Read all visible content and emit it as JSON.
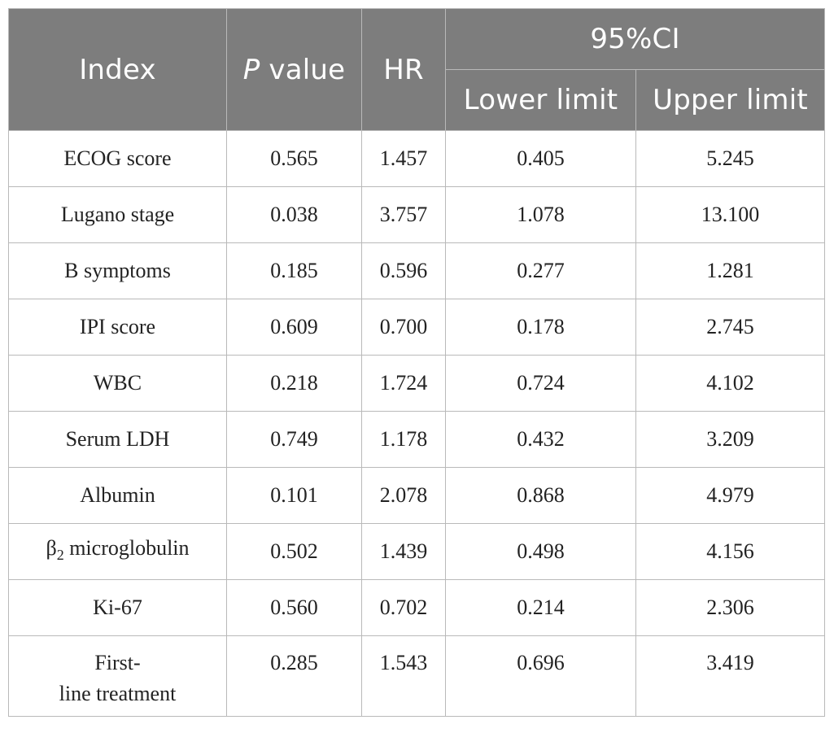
{
  "table": {
    "header": {
      "index": "Index",
      "p_value_italic": "P",
      "p_value_rest": " value",
      "hr": "HR",
      "ci": "95%CI",
      "lower": "Lower limit",
      "upper": "Upper limit"
    },
    "rows": [
      {
        "index": "ECOG score",
        "p": "0.565",
        "hr": "1.457",
        "lower": "0.405",
        "upper": "5.245"
      },
      {
        "index": "Lugano stage",
        "p": "0.038",
        "hr": "3.757",
        "lower": "1.078",
        "upper": "13.100"
      },
      {
        "index": "B symptoms",
        "p": "0.185",
        "hr": "0.596",
        "lower": "0.277",
        "upper": "1.281"
      },
      {
        "index": "IPI score",
        "p": "0.609",
        "hr": "0.700",
        "lower": "0.178",
        "upper": "2.745"
      },
      {
        "index": "WBC",
        "p": "0.218",
        "hr": "1.724",
        "lower": "0.724",
        "upper": "4.102"
      },
      {
        "index": "Serum LDH",
        "p": "0.749",
        "hr": "1.178",
        "lower": "0.432",
        "upper": "3.209"
      },
      {
        "index": "Albumin",
        "p": "0.101",
        "hr": "2.078",
        "lower": "0.868",
        "upper": "4.979"
      },
      {
        "index_symbol": "β",
        "index_sub": "2",
        "index_rest": " microglobulin",
        "p": "0.502",
        "hr": "1.439",
        "lower": "0.498",
        "upper": "4.156"
      },
      {
        "index": "Ki-67",
        "p": "0.560",
        "hr": "0.702",
        "lower": "0.214",
        "upper": "2.306"
      },
      {
        "index_line1": "First-",
        "index_line2": "line treatment",
        "p": "0.285",
        "hr": "1.543",
        "lower": "0.696",
        "upper": "3.419"
      }
    ]
  }
}
